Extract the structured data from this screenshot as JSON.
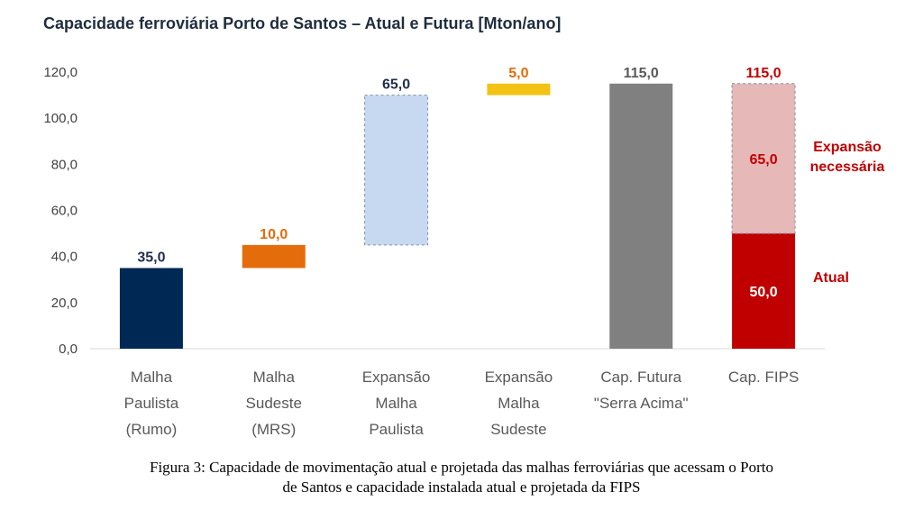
{
  "chart_data": {
    "type": "bar",
    "title": "Capacidade ferroviária Porto de Santos – Atual e Futura [Mton/ano]",
    "ylim": [
      0,
      120
    ],
    "yticks": [
      "0,0",
      "20,0",
      "40,0",
      "60,0",
      "80,0",
      "100,0",
      "120,0"
    ],
    "grid": false,
    "categories": [
      [
        "Malha",
        "Paulista",
        "(Rumo)"
      ],
      [
        "Malha",
        "Sudeste",
        "(MRS)"
      ],
      [
        "Expansão",
        "Malha",
        "Paulista"
      ],
      [
        "Expansão",
        "Malha",
        "Sudeste"
      ],
      [
        "Cap. Futura",
        "\"Serra Acima\""
      ],
      [
        "Cap.  FIPS"
      ]
    ],
    "bars": [
      {
        "base": 0,
        "value": 35,
        "label": "35,0",
        "fill": "#002855",
        "label_color": "#1f2d4d",
        "dashed": false
      },
      {
        "base": 35,
        "value": 10,
        "label": "10,0",
        "fill": "#e46c0a",
        "label_color": "#e46c0a",
        "dashed": false
      },
      {
        "base": 45,
        "value": 65,
        "label": "65,0",
        "fill": "#c6d9f1",
        "label_color": "#1f2d4d",
        "dashed": true
      },
      {
        "base": 110,
        "value": 5,
        "label": "5,0",
        "fill": "#f2c314",
        "label_color": "#e46c0a",
        "dashed": false
      },
      {
        "base": 0,
        "value": 115,
        "label": "115,0",
        "fill": "#808080",
        "label_color": "#595959",
        "dashed": false
      }
    ],
    "stacked_bar": {
      "segments": [
        {
          "name": "Atual",
          "base": 0,
          "value": 50,
          "label": "50,0",
          "fill": "#c00000",
          "label_color": "#ffffff",
          "dashed": false
        },
        {
          "name": "Expansão necessária",
          "base": 50,
          "value": 65,
          "label": "65,0",
          "fill": "#e6b8b8",
          "label_color": "#c00000",
          "dashed": true
        }
      ],
      "total_label": "115,0",
      "total_label_color": "#c00000"
    },
    "annotations": [
      {
        "lines": [
          "Expansão",
          "necessária"
        ],
        "color": "#c00000"
      },
      {
        "lines": [
          "Atual"
        ],
        "color": "#c00000"
      }
    ]
  },
  "caption": {
    "line1": "Figura 3: Capacidade de movimentação atual e projetada das malhas ferroviárias que acessam o Porto",
    "line2": "de Santos e capacidade instalada atual e projetada da FIPS"
  }
}
